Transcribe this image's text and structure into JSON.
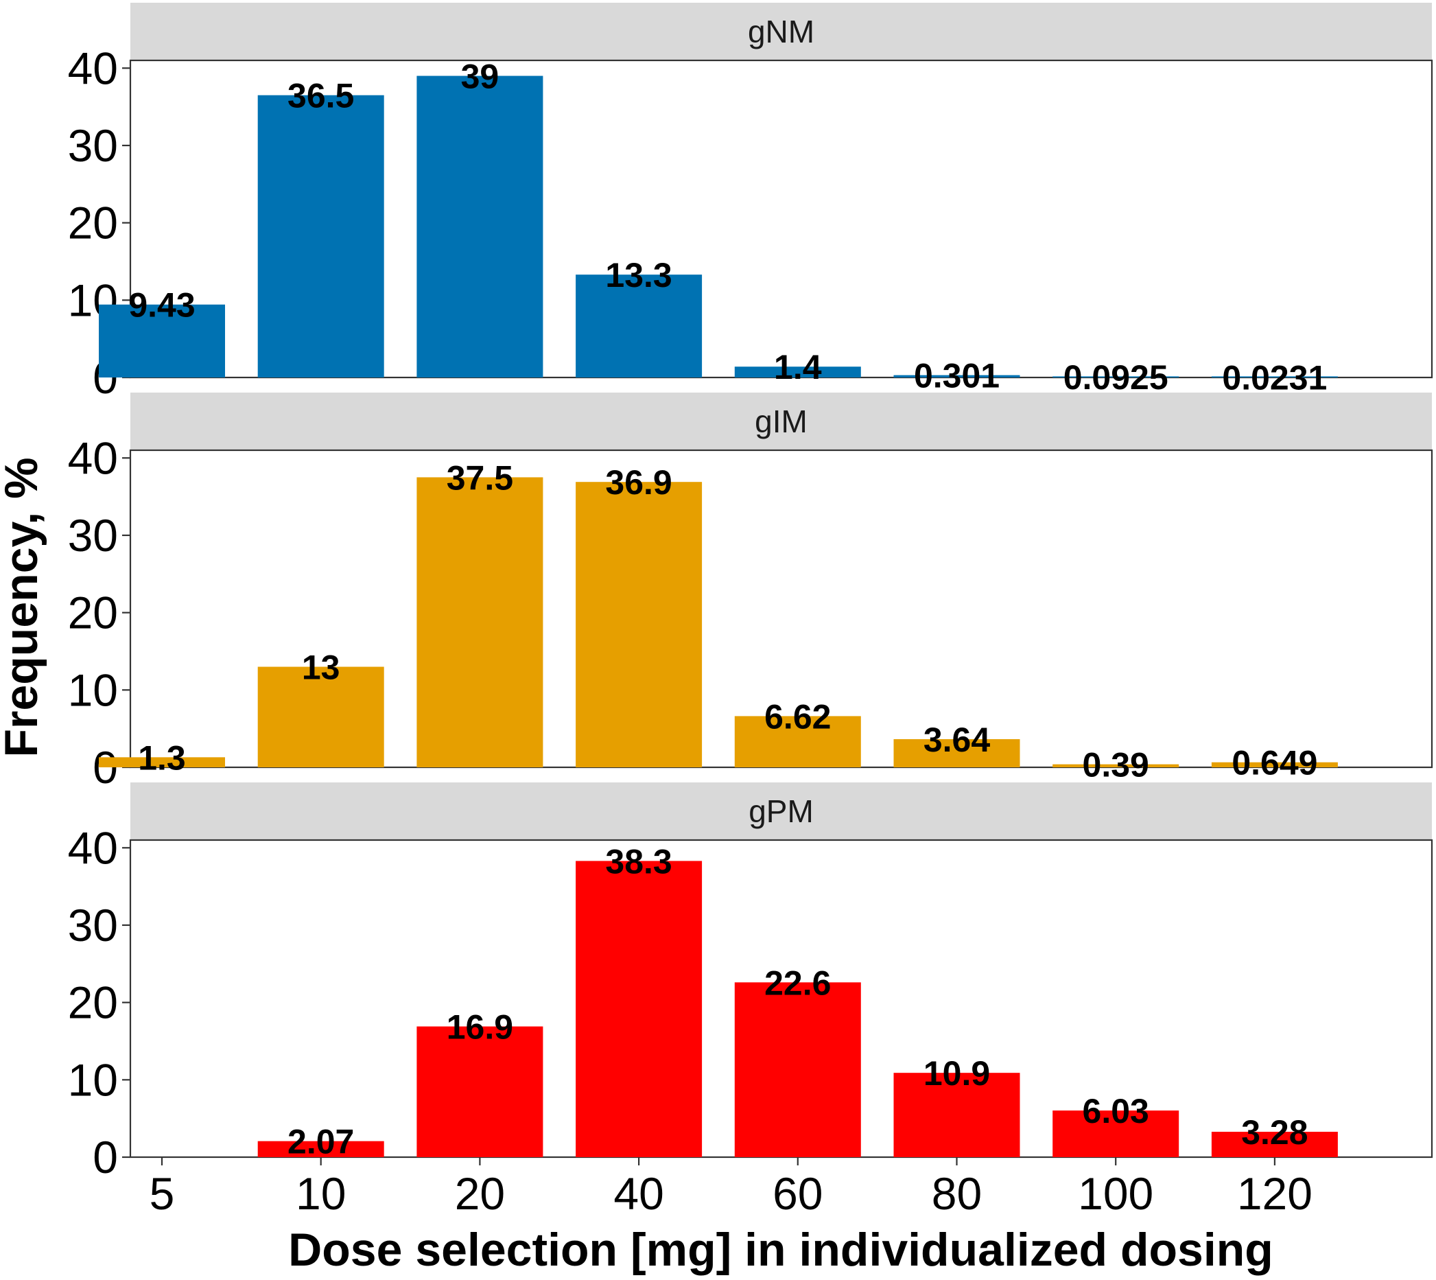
{
  "chart_data": {
    "type": "bar",
    "xlabel": "Dose selection [mg] in individualized dosing",
    "ylabel": "Frequency, %",
    "categories": [
      "5",
      "10",
      "20",
      "40",
      "60",
      "80",
      "100",
      "120"
    ],
    "ylim": [
      0,
      41
    ],
    "yticks": [
      0,
      10,
      20,
      30,
      40
    ],
    "yticks_labels": [
      "0",
      "10",
      "20",
      "30",
      "40"
    ],
    "grid": false,
    "facets": [
      {
        "name": "gNM",
        "color": "#0072B2",
        "values": [
          9.43,
          36.5,
          39,
          13.3,
          1.4,
          0.301,
          0.0925,
          0.0231
        ],
        "labels": [
          "9.43",
          "36.5",
          "39",
          "13.3",
          "1.4",
          "0.301",
          "0.0925",
          "0.0231"
        ]
      },
      {
        "name": "gIM",
        "color": "#E69F00",
        "values": [
          1.3,
          13,
          37.5,
          36.9,
          6.62,
          3.64,
          0.39,
          0.649
        ],
        "labels": [
          "1.3",
          "13",
          "37.5",
          "36.9",
          "6.62",
          "3.64",
          "0.39",
          "0.649"
        ]
      },
      {
        "name": "gPM",
        "color": "#FF0000",
        "values": [
          null,
          2.07,
          16.9,
          38.3,
          22.6,
          10.9,
          6.03,
          3.28
        ],
        "labels": [
          "",
          "2.07",
          "16.9",
          "38.3",
          "22.6",
          "10.9",
          "6.03",
          "3.28"
        ]
      }
    ]
  }
}
